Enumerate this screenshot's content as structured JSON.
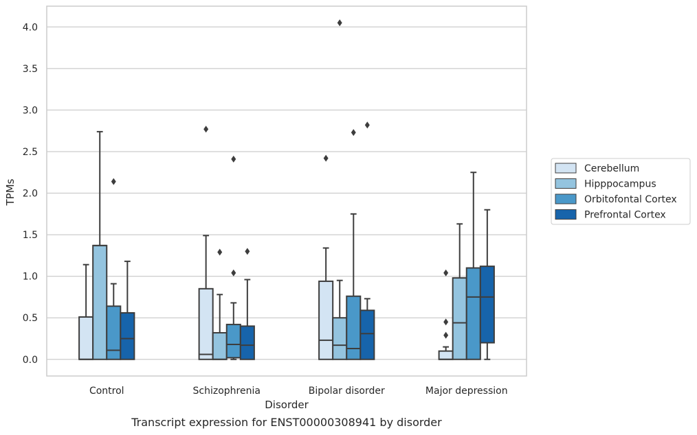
{
  "chart_data": {
    "type": "box",
    "xlabel": "Disorder",
    "ylabel": "TPMs",
    "caption": "Transcript expression for ENST00000308941 by disorder",
    "categories": [
      "Control",
      "Schizophrenia",
      "Bipolar disorder",
      "Major depression"
    ],
    "ylim": [
      -0.2,
      4.25
    ],
    "yticks": [
      "0.0",
      "0.5",
      "1.0",
      "1.5",
      "2.0",
      "2.5",
      "3.0",
      "3.5",
      "4.0"
    ],
    "grid": true,
    "legend_position": "right",
    "palette": [
      "#d3e4f3",
      "#94c4df",
      "#4a98c9",
      "#1764ab"
    ],
    "series": [
      {
        "name": "Cerebellum",
        "boxes": [
          {
            "q1": 0.0,
            "median": 0.0,
            "q3": 0.51,
            "whislo": 0.0,
            "whishi": 1.14,
            "fliers": []
          },
          {
            "q1": 0.0,
            "median": 0.06,
            "q3": 0.85,
            "whislo": 0.0,
            "whishi": 1.49,
            "fliers": [
              2.77
            ]
          },
          {
            "q1": 0.0,
            "median": 0.23,
            "q3": 0.94,
            "whislo": 0.0,
            "whishi": 1.34,
            "fliers": [
              2.42
            ]
          },
          {
            "q1": 0.0,
            "median": 0.0,
            "q3": 0.1,
            "whislo": 0.0,
            "whishi": 0.15,
            "fliers": [
              0.29,
              0.45,
              1.04
            ]
          }
        ]
      },
      {
        "name": "Hipppocampus",
        "boxes": [
          {
            "q1": 0.0,
            "median": 1.37,
            "q3": 1.37,
            "whislo": 0.0,
            "whishi": 2.74,
            "fliers": []
          },
          {
            "q1": 0.0,
            "median": 0.0,
            "q3": 0.32,
            "whislo": 0.0,
            "whishi": 0.78,
            "fliers": [
              1.29
            ]
          },
          {
            "q1": 0.0,
            "median": 0.17,
            "q3": 0.5,
            "whislo": 0.0,
            "whishi": 0.95,
            "fliers": [
              4.05
            ]
          },
          {
            "q1": 0.0,
            "median": 0.44,
            "q3": 0.98,
            "whislo": 0.0,
            "whishi": 1.63,
            "fliers": []
          }
        ]
      },
      {
        "name": "Orbitofontal Cortex",
        "boxes": [
          {
            "q1": 0.0,
            "median": 0.11,
            "q3": 0.64,
            "whislo": 0.0,
            "whishi": 0.91,
            "fliers": [
              2.14
            ]
          },
          {
            "q1": 0.02,
            "median": 0.18,
            "q3": 0.42,
            "whislo": 0.0,
            "whishi": 0.68,
            "fliers": [
              1.04,
              2.41
            ]
          },
          {
            "q1": 0.0,
            "median": 0.13,
            "q3": 0.76,
            "whislo": 0.0,
            "whishi": 1.75,
            "fliers": [
              2.73
            ]
          },
          {
            "q1": 0.0,
            "median": 0.75,
            "q3": 1.1,
            "whislo": 0.0,
            "whishi": 2.25,
            "fliers": []
          }
        ]
      },
      {
        "name": "Prefrontal Cortex",
        "boxes": [
          {
            "q1": 0.0,
            "median": 0.25,
            "q3": 0.56,
            "whislo": 0.0,
            "whishi": 1.18,
            "fliers": []
          },
          {
            "q1": 0.0,
            "median": 0.17,
            "q3": 0.4,
            "whislo": 0.0,
            "whishi": 0.96,
            "fliers": [
              1.3
            ]
          },
          {
            "q1": 0.0,
            "median": 0.31,
            "q3": 0.59,
            "whislo": 0.0,
            "whishi": 0.73,
            "fliers": [
              2.82
            ]
          },
          {
            "q1": 0.2,
            "median": 0.75,
            "q3": 1.12,
            "whislo": 0.0,
            "whishi": 1.8,
            "fliers": []
          }
        ]
      }
    ]
  }
}
